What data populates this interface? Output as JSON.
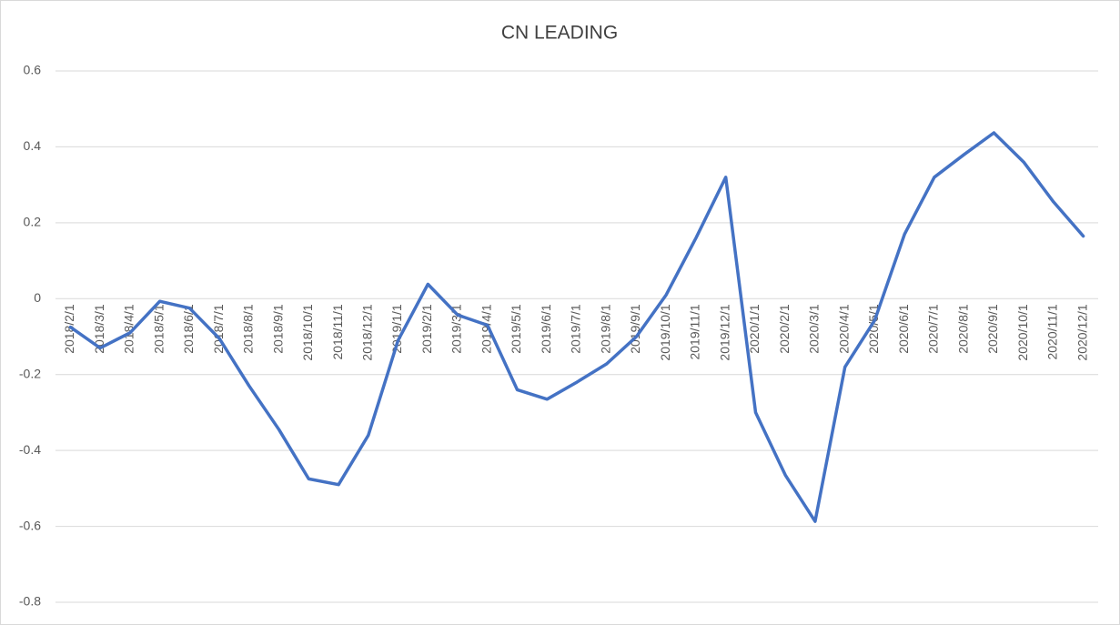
{
  "chart_data": {
    "type": "line",
    "title": "CN LEADING",
    "categories": [
      "2018/2/1",
      "2018/3/1",
      "2018/4/1",
      "2018/5/1",
      "2018/6/1",
      "2018/7/1",
      "2018/8/1",
      "2018/9/1",
      "2018/10/1",
      "2018/11/1",
      "2018/12/1",
      "2019/1/1",
      "2019/2/1",
      "2019/3/1",
      "2019/4/1",
      "2019/5/1",
      "2019/6/1",
      "2019/7/1",
      "2019/8/1",
      "2019/9/1",
      "2019/10/1",
      "2019/11/1",
      "2019/12/1",
      "2020/1/1",
      "2020/2/1",
      "2020/3/1",
      "2020/4/1",
      "2020/5/1",
      "2020/6/1",
      "2020/7/1",
      "2020/8/1",
      "2020/9/1",
      "2020/10/1",
      "2020/11/1",
      "2020/12/1"
    ],
    "values": [
      -0.075,
      -0.13,
      -0.09,
      -0.007,
      -0.025,
      -0.105,
      -0.23,
      -0.345,
      -0.475,
      -0.49,
      -0.36,
      -0.11,
      0.038,
      -0.043,
      -0.07,
      -0.24,
      -0.265,
      -0.22,
      -0.172,
      -0.1,
      0.01,
      0.16,
      0.32,
      -0.3,
      -0.465,
      -0.587,
      -0.18,
      -0.057,
      0.17,
      0.32,
      0.38,
      0.437,
      0.36,
      0.255,
      0.165
    ],
    "color": "#4472c4",
    "ylim": [
      -0.8,
      0.6
    ],
    "yticks": [
      -0.8,
      -0.6,
      -0.4,
      -0.2,
      0,
      0.2,
      0.4,
      0.6
    ],
    "grid": true
  }
}
